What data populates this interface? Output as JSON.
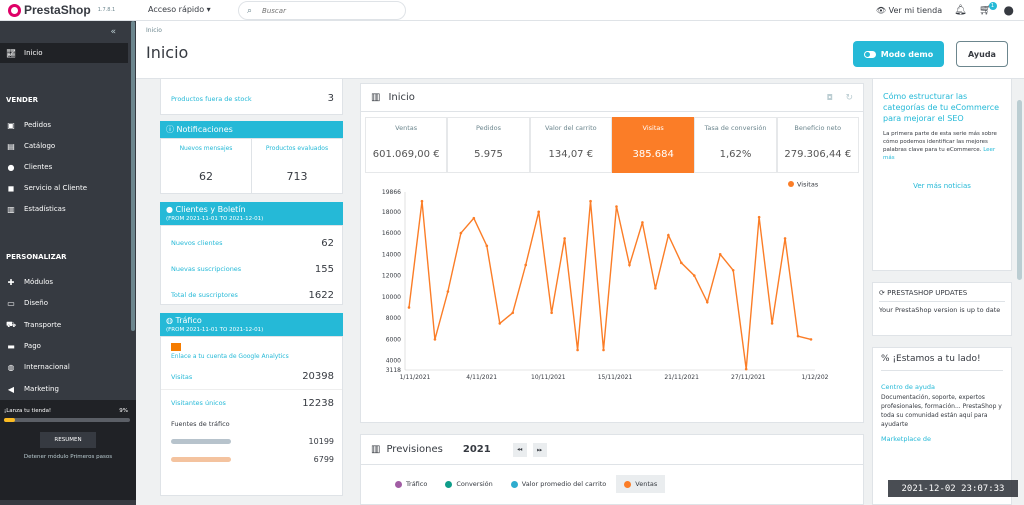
{
  "topbar": {
    "brand": "PrestaShop",
    "version": "1.7.8.1",
    "quick_access": "Acceso rápido ▾",
    "search_placeholder": "Buscar",
    "view_store": "Ver mi tienda",
    "cart_count": "1"
  },
  "sidebar": {
    "home": "Inicio",
    "sections": {
      "sell": "VENDER",
      "customize": "PERSONALIZAR"
    },
    "sell_items": [
      {
        "label": "Pedidos"
      },
      {
        "label": "Catálogo"
      },
      {
        "label": "Clientes"
      },
      {
        "label": "Servicio al Cliente"
      },
      {
        "label": "Estadísticas"
      }
    ],
    "customize_items": [
      {
        "label": "Módulos"
      },
      {
        "label": "Diseño"
      },
      {
        "label": "Transporte"
      },
      {
        "label": "Pago"
      },
      {
        "label": "Internacional"
      },
      {
        "label": "Marketing"
      }
    ],
    "onboarding": {
      "label": "¡Lanza tu tienda!",
      "percent": "9%",
      "progress": 0.09,
      "resume": "RESUMEN",
      "stop": "Detener módulo Primeros pasos"
    }
  },
  "header": {
    "breadcrumb": "Inicio",
    "title": "Inicio",
    "demo_button": "Modo demo",
    "help_button": "Ayuda"
  },
  "left_column": {
    "out_of_stock_label": "Productos fuera de stock",
    "out_of_stock_value": "3",
    "notifications": {
      "title": "Notificaciones",
      "new_messages_label": "Nuevos mensajes",
      "new_messages_value": "62",
      "reviews_label": "Productos evaluados",
      "reviews_value": "713"
    },
    "customers": {
      "title": "Clientes y Boletín",
      "range": "(FROM 2021-11-01 TO 2021-12-01)",
      "rows": [
        {
          "label": "Nuevos clientes",
          "value": "62"
        },
        {
          "label": "Nuevas suscripciones",
          "value": "155"
        },
        {
          "label": "Total de suscriptores",
          "value": "1622"
        }
      ]
    },
    "traffic": {
      "title": "Tráfico",
      "range": "(FROM 2021-11-01 TO 2021-12-01)",
      "ga_link": "Enlace a tu cuenta de Google Analytics",
      "rows": [
        {
          "label": "Visitas",
          "value": "20398"
        },
        {
          "label": "Visitantes únicos",
          "value": "12238"
        }
      ],
      "sources_label": "Fuentes de tráfico",
      "sources": [
        {
          "label": "",
          "value": "10199"
        },
        {
          "label": "",
          "value": "6799"
        }
      ]
    }
  },
  "dashboard": {
    "title": "Inicio",
    "kpis": [
      {
        "label": "Ventas",
        "value": "601.069,00 €"
      },
      {
        "label": "Pedidos",
        "value": "5.975"
      },
      {
        "label": "Valor del carrito",
        "value": "134,07 €"
      },
      {
        "label": "Visitas",
        "value": "385.684"
      },
      {
        "label": "Tasa de conversión",
        "value": "1,62%"
      },
      {
        "label": "Beneficio neto",
        "value": "279.306,44 €"
      }
    ],
    "active_color": "#fb7d27"
  },
  "chart_data": {
    "type": "line",
    "title": "",
    "xlabel": "",
    "ylabel": "",
    "ylim": [
      3118,
      19866
    ],
    "y_ticks": [
      "19866",
      "18000",
      "16000",
      "14000",
      "12000",
      "10000",
      "8000",
      "6000",
      "4000",
      "3118"
    ],
    "x_ticks": [
      "1/11/2021",
      "4/11/2021",
      "10/11/2021",
      "15/11/2021",
      "21/11/2021",
      "27/11/2021",
      "1/12/202"
    ],
    "legend": "Visitas",
    "legend_position": "top-right",
    "series": [
      {
        "name": "Visitas",
        "color": "#fb7d27",
        "values": [
          9000,
          19000,
          6000,
          10500,
          16000,
          17400,
          14800,
          7500,
          8500,
          13000,
          18000,
          8500,
          15500,
          5000,
          19000,
          5000,
          18500,
          13000,
          17000,
          10800,
          15800,
          13200,
          12000,
          9500,
          14000,
          12500,
          3200,
          17500,
          7500,
          15500,
          6300,
          6000
        ]
      }
    ]
  },
  "forecast": {
    "title": "Previsiones",
    "year": "2021",
    "tabs": [
      {
        "label": "Tráfico",
        "color": "#a15da4"
      },
      {
        "label": "Conversión",
        "color": "#2eacce"
      },
      {
        "label": "Valor promedio del carrito",
        "color": "#2eacce"
      },
      {
        "label": "Ventas",
        "color": "#fb7d27"
      }
    ]
  },
  "right_column": {
    "news_title": "Cómo estructurar las categorías de tu eCommerce para mejorar el SEO",
    "news_text": "La primera parte de esta serie más sobre cómo podemos identificar las mejores palabras clave para tu eCommerce.",
    "news_more": "Leer más",
    "more_news": "Ver más noticias",
    "updates_title": "PRESTASHOP UPDATES",
    "updates_text": "Your PrestaShop version is up to date",
    "help_title": "¡Estamos a tu lado!",
    "help_center": "Centro de ayuda",
    "help_text": "Documentación, soporte, expertos profesionales, formación... PrestaShop y toda su comunidad están aquí para ayudarte",
    "marketplace_title": "Marketplace de"
  },
  "timestamp": "2021-12-02  23:07:33"
}
